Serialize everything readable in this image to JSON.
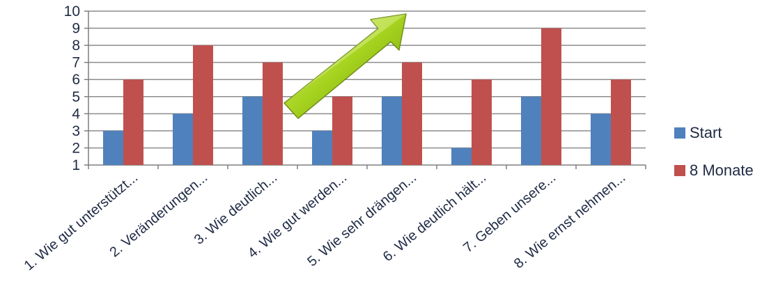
{
  "chart_data": {
    "type": "bar",
    "categories": [
      "1. Wie gut unterstützt...",
      "2. Veränderungen...",
      "3. Wie deutlich...",
      "4. Wie gut werden...",
      "5. Wie sehr drängen...",
      "6. Wie deutlich hält...",
      "7. Geben unsere...",
      "8. Wie ernst nehmen..."
    ],
    "series": [
      {
        "name": "Start",
        "color": "#4f81bd",
        "values": [
          3,
          4,
          5,
          3,
          5,
          2,
          5,
          4
        ]
      },
      {
        "name": "8 Monate",
        "color": "#c0504d",
        "values": [
          6,
          8,
          7,
          5,
          7,
          6,
          9,
          6
        ]
      }
    ],
    "yticks": [
      "1",
      "2",
      "3",
      "4",
      "5",
      "6",
      "7",
      "8",
      "9",
      "10"
    ],
    "ylim": [
      1,
      10
    ],
    "grid": true,
    "legend": "right",
    "annotation": "green-arrow-up-right"
  }
}
